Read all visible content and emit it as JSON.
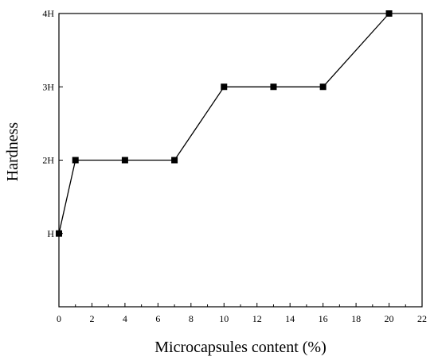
{
  "chart_data": {
    "type": "line",
    "title": "",
    "xlabel": "Microcapsules content (%)",
    "ylabel": "Hardness",
    "xlim": [
      0,
      22
    ],
    "ylim": [
      0,
      4
    ],
    "x_ticks": [
      0,
      2,
      4,
      6,
      8,
      10,
      12,
      14,
      16,
      18,
      20,
      22
    ],
    "y_ticks": [
      {
        "value": 1,
        "label": "H"
      },
      {
        "value": 2,
        "label": "2H"
      },
      {
        "value": 3,
        "label": "3H"
      },
      {
        "value": 4,
        "label": "4H"
      }
    ],
    "grid": false,
    "legend": "none",
    "series": [
      {
        "marker": "square",
        "color": "#000000",
        "points": [
          {
            "x": 0,
            "y": 1,
            "label": "H"
          },
          {
            "x": 1,
            "y": 2,
            "label": "2H"
          },
          {
            "x": 4,
            "y": 2,
            "label": "2H"
          },
          {
            "x": 7,
            "y": 2,
            "label": "2H"
          },
          {
            "x": 10,
            "y": 3,
            "label": "3H"
          },
          {
            "x": 13,
            "y": 3,
            "label": "3H"
          },
          {
            "x": 16,
            "y": 3,
            "label": "3H"
          },
          {
            "x": 20,
            "y": 4,
            "label": "4H"
          }
        ]
      }
    ]
  }
}
